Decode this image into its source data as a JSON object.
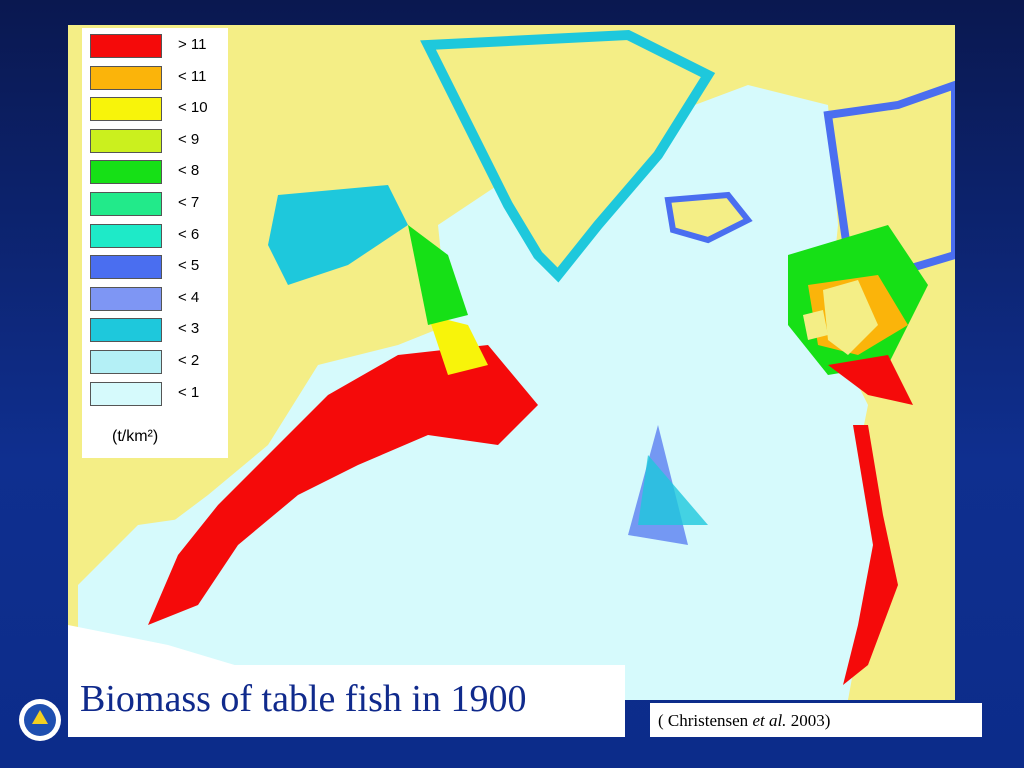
{
  "legend": {
    "items": [
      {
        "label": "> 11",
        "color": "#f50a0a"
      },
      {
        "label": "< 11",
        "color": "#fbb40a"
      },
      {
        "label": "< 10",
        "color": "#f8f40a"
      },
      {
        "label": "< 9",
        "color": "#cbf01e"
      },
      {
        "label": "< 8",
        "color": "#16e016"
      },
      {
        "label": "< 7",
        "color": "#22ea8a"
      },
      {
        "label": "< 6",
        "color": "#1eeac8"
      },
      {
        "label": "< 5",
        "color": "#4a6ef0"
      },
      {
        "label": "< 4",
        "color": "#7e96f4"
      },
      {
        "label": "< 3",
        "color": "#1ec8dc"
      },
      {
        "label": "< 2",
        "color": "#b4f0f6"
      },
      {
        "label": "< 1",
        "color": "#d6fafc"
      }
    ],
    "unit": "(t/km²)"
  },
  "title": "Biomass of table fish in 1900",
  "citation": {
    "prefix": "( Christensen ",
    "italic": "et al.",
    "suffix": " 2003)"
  }
}
